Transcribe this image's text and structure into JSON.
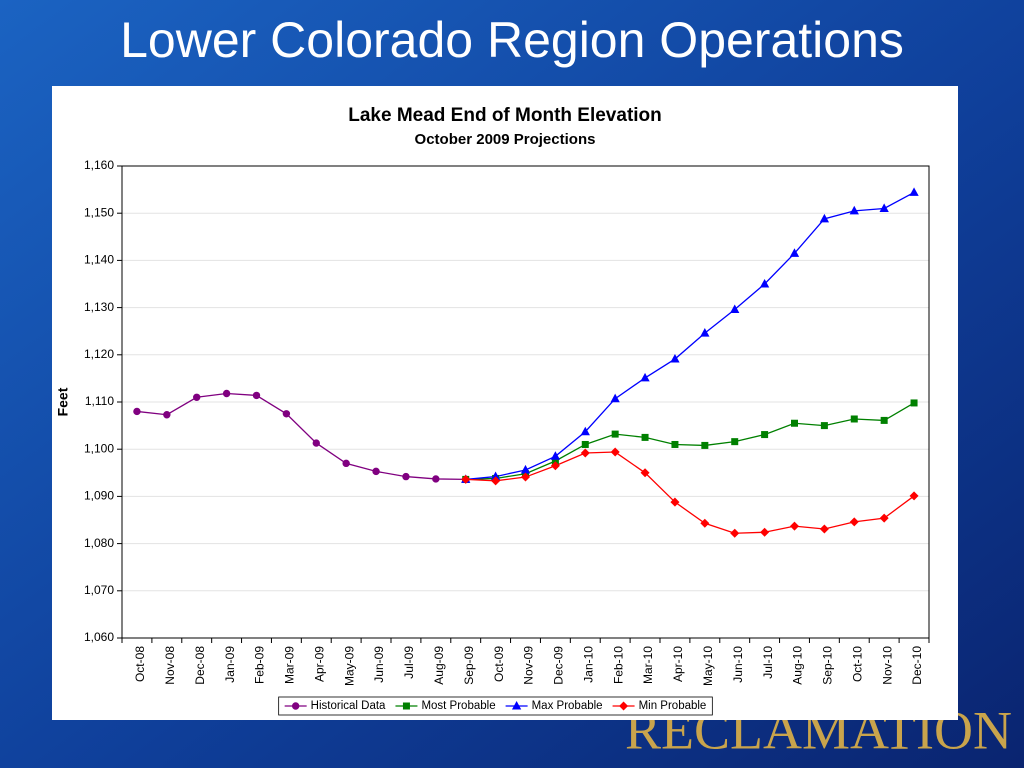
{
  "slide": {
    "title": "Lower Colorado Region Operations",
    "logo": "RECLAMATION"
  },
  "chart_data": {
    "type": "line",
    "title": "Lake Mead End of Month Elevation",
    "subtitle": "October 2009 Projections",
    "ylabel": "Feet",
    "categories": [
      "Oct-08",
      "Nov-08",
      "Dec-08",
      "Jan-09",
      "Feb-09",
      "Mar-09",
      "Apr-09",
      "May-09",
      "Jun-09",
      "Jul-09",
      "Aug-09",
      "Sep-09",
      "Oct-09",
      "Nov-09",
      "Dec-09",
      "Jan-10",
      "Feb-10",
      "Mar-10",
      "Apr-10",
      "May-10",
      "Jun-10",
      "Jul-10",
      "Aug-10",
      "Sep-10",
      "Oct-10",
      "Nov-10",
      "Dec-10"
    ],
    "series": [
      {
        "name": "Historical Data",
        "color": "#800080",
        "marker": "circle",
        "values": [
          1108,
          1107.3,
          1111,
          1111.8,
          1111.4,
          1107.5,
          1101.3,
          1097,
          1095.3,
          1094.2,
          1093.7,
          1093.6,
          null,
          null,
          null,
          null,
          null,
          null,
          null,
          null,
          null,
          null,
          null,
          null,
          null,
          null,
          null
        ]
      },
      {
        "name": "Most Probable",
        "color": "#008000",
        "marker": "square",
        "values": [
          null,
          null,
          null,
          null,
          null,
          null,
          null,
          null,
          null,
          null,
          null,
          1093.6,
          1093.8,
          1094.8,
          1097.5,
          1101,
          1103.2,
          1102.5,
          1101,
          1100.8,
          1101.6,
          1103.1,
          1105.5,
          1105,
          1106.4,
          1106.1,
          1109.8
        ]
      },
      {
        "name": "Max Probable",
        "color": "#0000ff",
        "marker": "triangle",
        "values": [
          null,
          null,
          null,
          null,
          null,
          null,
          null,
          null,
          null,
          null,
          null,
          1093.6,
          1094.2,
          1095.6,
          1098.5,
          1103.7,
          1110.7,
          1115.1,
          1119.1,
          1124.6,
          1129.6,
          1135,
          1141.5,
          1148.8,
          1150.5,
          1151,
          1154.4
        ]
      },
      {
        "name": "Min Probable",
        "color": "#ff0000",
        "marker": "diamond",
        "values": [
          null,
          null,
          null,
          null,
          null,
          null,
          null,
          null,
          null,
          null,
          null,
          1093.6,
          1093.3,
          1094.1,
          1096.5,
          1099.2,
          1099.4,
          1095,
          1088.8,
          1084.3,
          1082.2,
          1082.4,
          1083.7,
          1083.1,
          1084.6,
          1085.4,
          1090.1
        ]
      }
    ],
    "ylim": [
      1060,
      1160
    ],
    "yticks": [
      {
        "value": 1060,
        "label": "1,060"
      },
      {
        "value": 1070,
        "label": "1,070"
      },
      {
        "value": 1080,
        "label": "1,080"
      },
      {
        "value": 1090,
        "label": "1,090"
      },
      {
        "value": 1100,
        "label": "1,100"
      },
      {
        "value": 1110,
        "label": "1,110"
      },
      {
        "value": 1120,
        "label": "1,120"
      },
      {
        "value": 1130,
        "label": "1,130"
      },
      {
        "value": 1140,
        "label": "1,140"
      },
      {
        "value": 1150,
        "label": "1,150"
      },
      {
        "value": 1160,
        "label": "1,160"
      }
    ],
    "grid": true,
    "legend": "bottom"
  }
}
